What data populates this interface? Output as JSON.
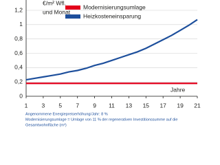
{
  "chart_data": {
    "type": "line",
    "y_label": [
      "€/m² Wfl.",
      "und Monat"
    ],
    "x_label": "Jahre",
    "x": [
      1,
      2,
      3,
      4,
      5,
      6,
      7,
      8,
      9,
      10,
      11,
      12,
      13,
      14,
      15,
      16,
      17,
      18,
      19,
      20,
      21
    ],
    "series": [
      {
        "name": "Modernisierungsumlage",
        "color": "#e3001b",
        "values": [
          0.18,
          0.18,
          0.18,
          0.18,
          0.18,
          0.18,
          0.18,
          0.18,
          0.18,
          0.18,
          0.18,
          0.18,
          0.18,
          0.18,
          0.18,
          0.18,
          0.18,
          0.18,
          0.18,
          0.18,
          0.18
        ]
      },
      {
        "name": "Heizkosteneinsparung",
        "color": "#1d4f9c",
        "values": [
          0.23,
          0.25,
          0.27,
          0.29,
          0.31,
          0.34,
          0.36,
          0.39,
          0.43,
          0.46,
          0.5,
          0.54,
          0.58,
          0.62,
          0.67,
          0.73,
          0.79,
          0.85,
          0.92,
          0.99,
          1.07
        ]
      }
    ],
    "xlim": [
      1,
      21
    ],
    "xticks": [
      1,
      3,
      5,
      7,
      9,
      11,
      13,
      15,
      17,
      19,
      21
    ],
    "ylim": [
      0,
      1.2
    ],
    "yticks": [
      0,
      {
        "value": 0.2,
        "label": "0,2"
      },
      {
        "value": 0.4,
        "label": "0,4"
      },
      {
        "value": 0.6,
        "label": "0,6"
      },
      {
        "value": 0.8,
        "label": "0,8"
      },
      1,
      {
        "value": 1.2,
        "label": "1,2"
      }
    ],
    "grid": true,
    "legend": "top",
    "notes": [
      "Angenommene Energiepreiserhöhung/Jahr: 8 %",
      "Modernisierungsumlage = Umlage von 11 % der regenerativen Investitionssumme auf die",
      "Gesamtwohnfläche (m²)"
    ]
  }
}
